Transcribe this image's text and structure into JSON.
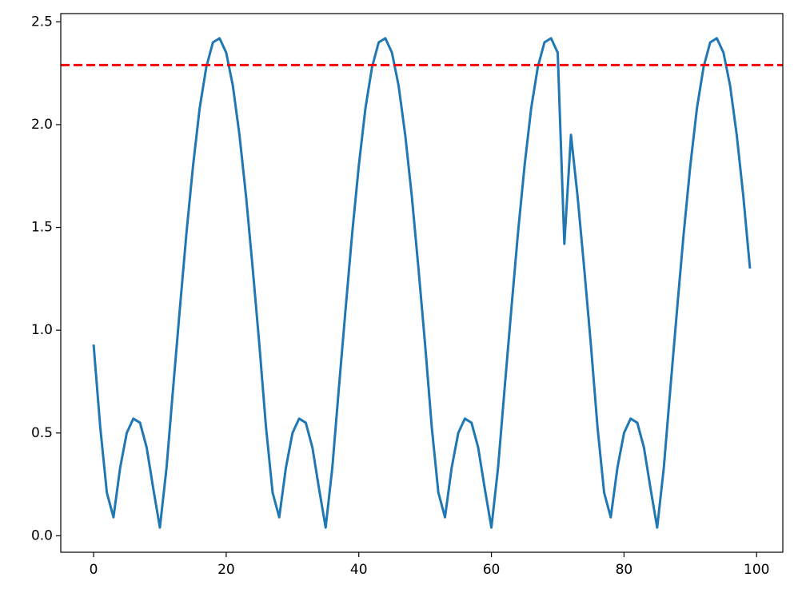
{
  "chart_data": {
    "type": "line",
    "x": [
      0,
      1,
      2,
      3,
      4,
      5,
      6,
      7,
      8,
      9,
      10,
      11,
      12,
      13,
      14,
      15,
      16,
      17,
      18,
      19,
      20,
      21,
      22,
      23,
      24,
      25,
      26,
      27,
      28,
      29,
      30,
      31,
      32,
      33,
      34,
      35,
      36,
      37,
      38,
      39,
      40,
      41,
      42,
      43,
      44,
      45,
      46,
      47,
      48,
      49,
      50,
      51,
      52,
      53,
      54,
      55,
      56,
      57,
      58,
      59,
      60,
      61,
      62,
      63,
      64,
      65,
      66,
      67,
      68,
      69,
      70,
      71,
      72,
      73,
      74,
      75,
      76,
      77,
      78,
      79,
      80,
      81,
      82,
      83,
      84,
      85,
      86,
      87,
      88,
      89,
      90,
      91,
      92,
      93,
      94,
      95,
      96,
      97,
      98,
      99
    ],
    "series": [
      {
        "color": "#1f77b4",
        "values": [
          0.93,
          0.53,
          0.21,
          0.09,
          0.33,
          0.5,
          0.57,
          0.55,
          0.43,
          0.23,
          0.04,
          0.33,
          0.72,
          1.1,
          1.47,
          1.8,
          2.08,
          2.28,
          2.4,
          2.42,
          2.35,
          2.19,
          1.95,
          1.65,
          1.3,
          0.93,
          0.53,
          0.21,
          0.09,
          0.33,
          0.5,
          0.57,
          0.55,
          0.43,
          0.23,
          0.04,
          0.33,
          0.72,
          1.1,
          1.47,
          1.8,
          2.08,
          2.28,
          2.4,
          2.42,
          2.35,
          2.19,
          1.95,
          1.65,
          1.3,
          0.93,
          0.53,
          0.21,
          0.09,
          0.33,
          0.5,
          0.57,
          0.55,
          0.43,
          0.23,
          0.04,
          0.33,
          0.72,
          1.1,
          1.47,
          1.8,
          2.08,
          2.28,
          2.4,
          2.42,
          2.35,
          1.42,
          1.95,
          1.65,
          1.3,
          0.93,
          0.53,
          0.21,
          0.09,
          0.33,
          0.5,
          0.57,
          0.55,
          0.43,
          0.23,
          0.04,
          0.33,
          0.72,
          1.1,
          1.47,
          1.8,
          2.08,
          2.28,
          2.4,
          2.42,
          2.35,
          2.19,
          1.95,
          1.65,
          1.3
        ]
      }
    ],
    "hline": {
      "value": 2.29,
      "color": "#ff0000"
    },
    "xlim": [
      -4.95,
      103.95
    ],
    "xticks": [
      0,
      20,
      40,
      60,
      80,
      100
    ],
    "ylim": [
      -0.08,
      2.54
    ],
    "yticks": [
      {
        "value": 0,
        "label": "0.0"
      },
      0.5,
      {
        "value": 1,
        "label": "1.0"
      },
      1.5,
      {
        "value": 2,
        "label": "2.0"
      },
      2.5
    ]
  }
}
